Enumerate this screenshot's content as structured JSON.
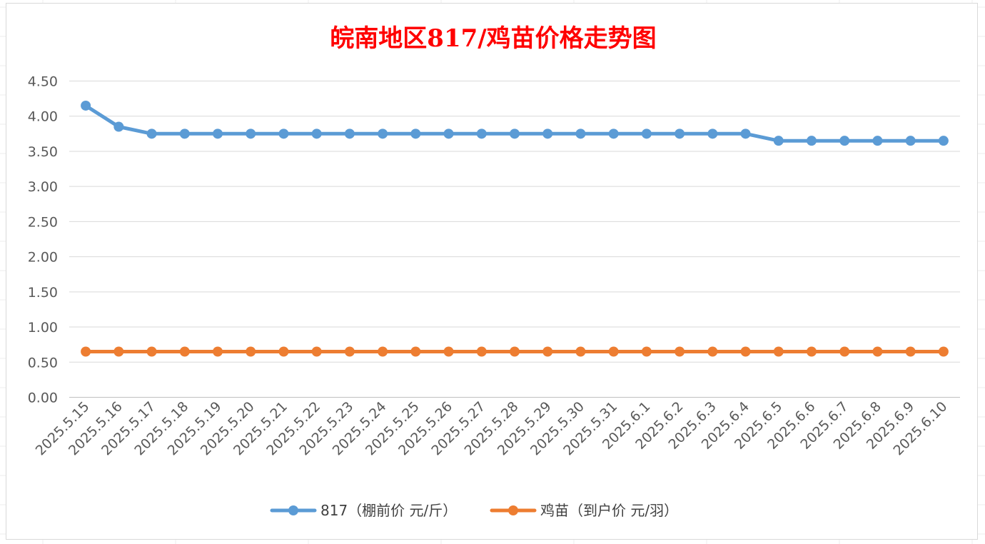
{
  "chart_data": {
    "type": "line",
    "title": "皖南地区817/鸡苗价格走势图",
    "categories": [
      "2025.5.15",
      "2025.5.16",
      "2025.5.17",
      "2025.5.18",
      "2025.5.19",
      "2025.5.20",
      "2025.5.21",
      "2025.5.22",
      "2025.5.23",
      "2025.5.24",
      "2025.5.25",
      "2025.5.26",
      "2025.5.27",
      "2025.5.28",
      "2025.5.29",
      "2025.5.30",
      "2025.5.31",
      "2025.6.1",
      "2025.6.2",
      "2025.6.3",
      "2025.6.4",
      "2025.6.5",
      "2025.6.6",
      "2025.6.7",
      "2025.6.8",
      "2025.6.9",
      "2025.6.10"
    ],
    "series": [
      {
        "name": "817（棚前价 元/斤）",
        "color": "#5b9bd5",
        "values": [
          4.15,
          3.85,
          3.75,
          3.75,
          3.75,
          3.75,
          3.75,
          3.75,
          3.75,
          3.75,
          3.75,
          3.75,
          3.75,
          3.75,
          3.75,
          3.75,
          3.75,
          3.75,
          3.75,
          3.75,
          3.75,
          3.65,
          3.65,
          3.65,
          3.65,
          3.65,
          3.65
        ]
      },
      {
        "name": "鸡苗（到户价 元/羽）",
        "color": "#ed7d31",
        "values": [
          0.65,
          0.65,
          0.65,
          0.65,
          0.65,
          0.65,
          0.65,
          0.65,
          0.65,
          0.65,
          0.65,
          0.65,
          0.65,
          0.65,
          0.65,
          0.65,
          0.65,
          0.65,
          0.65,
          0.65,
          0.65,
          0.65,
          0.65,
          0.65,
          0.65,
          0.65,
          0.65
        ]
      }
    ],
    "ylim": [
      0,
      4.5
    ],
    "yticks": [
      "0.00",
      "0.50",
      "1.00",
      "1.50",
      "2.00",
      "2.50",
      "3.00",
      "3.50",
      "4.00",
      "4.50"
    ],
    "grid": true,
    "legend_position": "bottom",
    "title_color": "#ff0000"
  }
}
